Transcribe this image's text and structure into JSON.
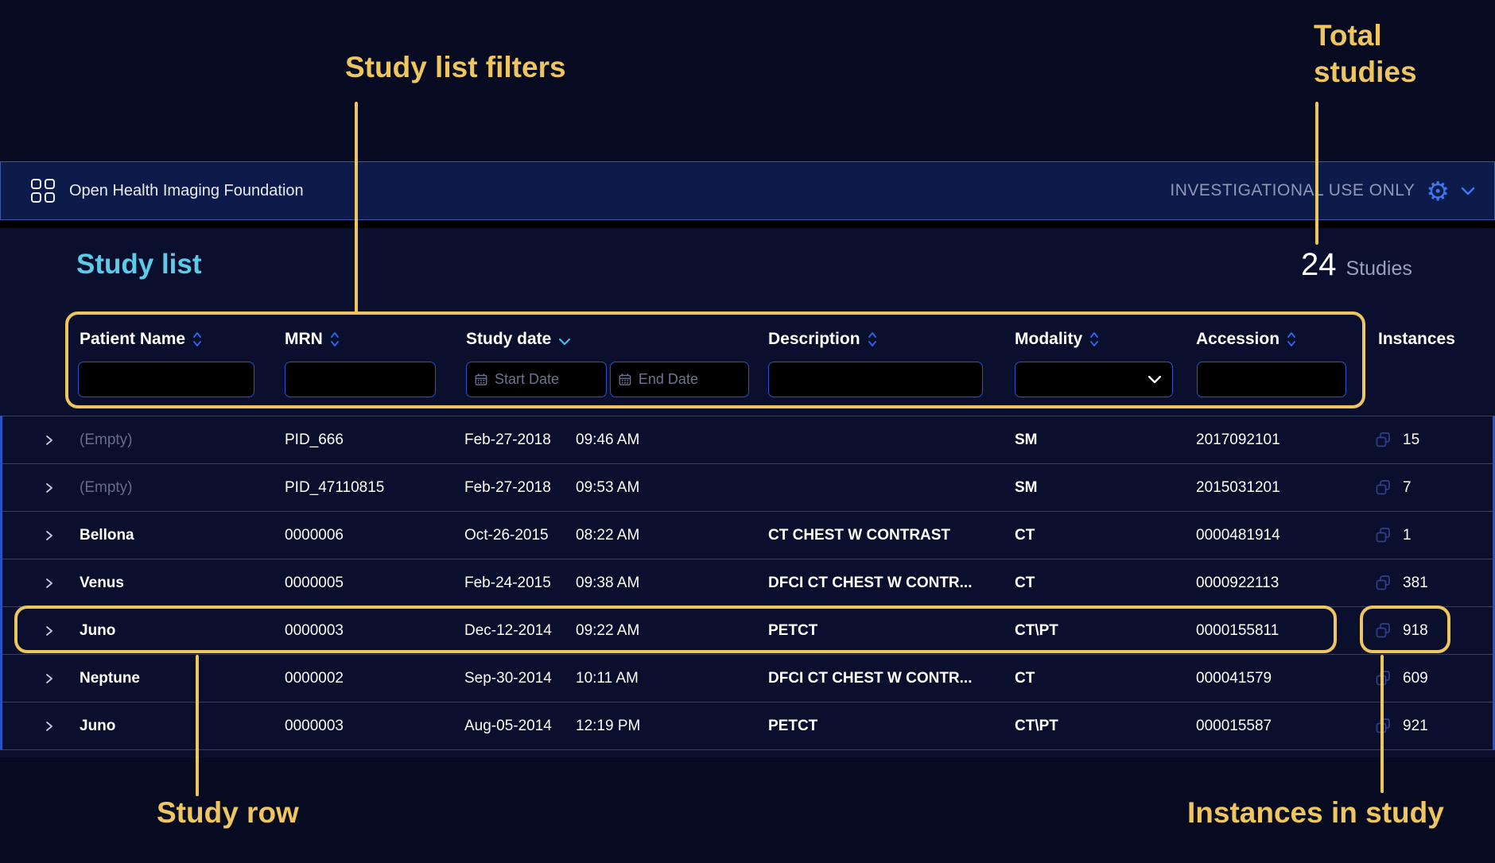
{
  "annotations": {
    "filters_label": "Study list filters",
    "total_line1": "Total",
    "total_line2": "studies",
    "study_row_label": "Study row",
    "instances_label": "Instances in study"
  },
  "header": {
    "app_name": "Open Health Imaging Foundation",
    "right_text": "INVESTIGATIONAL USE ONLY",
    "gear_glyph": "⚙"
  },
  "studylist": {
    "title": "Study list",
    "count": "24",
    "count_label": "Studies"
  },
  "filters": {
    "columns": [
      {
        "label": "Patient Name",
        "sort": "both"
      },
      {
        "label": "MRN",
        "sort": "both"
      },
      {
        "label": "Study date",
        "sort": "down"
      },
      {
        "label": "Description",
        "sort": "both"
      },
      {
        "label": "Modality",
        "sort": "both"
      },
      {
        "label": "Accession",
        "sort": "both"
      },
      {
        "label": "Instances",
        "sort": "none"
      }
    ],
    "start_date_placeholder": "Start Date",
    "end_date_placeholder": "End Date",
    "patient_value": "",
    "mrn_value": "",
    "description_value": "",
    "modality_value": "",
    "accession_value": ""
  },
  "table": {
    "rows": [
      {
        "patient": "(Empty)",
        "empty": true,
        "mrn": "PID_666",
        "date": "Feb-27-2018",
        "time": "09:46 AM",
        "description": "",
        "modality": "SM",
        "accession": "2017092101",
        "instances": "15"
      },
      {
        "patient": "(Empty)",
        "empty": true,
        "mrn": "PID_47110815",
        "date": "Feb-27-2018",
        "time": "09:53 AM",
        "description": "",
        "modality": "SM",
        "accession": "2015031201",
        "instances": "7"
      },
      {
        "patient": "Bellona",
        "empty": false,
        "mrn": "0000006",
        "date": "Oct-26-2015",
        "time": "08:22 AM",
        "description": "CT CHEST W CONTRAST",
        "modality": "CT",
        "accession": "0000481914",
        "instances": "1"
      },
      {
        "patient": "Venus",
        "empty": false,
        "mrn": "0000005",
        "date": "Feb-24-2015",
        "time": "09:38 AM",
        "description": "DFCI CT CHEST W CONTR...",
        "modality": "CT",
        "accession": "0000922113",
        "instances": "381"
      },
      {
        "patient": "Juno",
        "empty": false,
        "mrn": "0000003",
        "date": "Dec-12-2014",
        "time": "09:22 AM",
        "description": "PETCT",
        "modality": "CT\\PT",
        "accession": "0000155811",
        "instances": "918"
      },
      {
        "patient": "Neptune",
        "empty": false,
        "mrn": "0000002",
        "date": "Sep-30-2014",
        "time": "10:11 AM",
        "description": "DFCI CT CHEST W CONTR...",
        "modality": "CT",
        "accession": "000041579",
        "instances": "609"
      },
      {
        "patient": "Juno",
        "empty": false,
        "mrn": "0000003",
        "date": "Aug-05-2014",
        "time": "12:19 PM",
        "description": "PETCT",
        "modality": "CT\\PT",
        "accession": "000015587",
        "instances": "921"
      }
    ]
  },
  "colors": {
    "annotation_yellow": "#efc55f",
    "title_cyan": "#5bcbe8",
    "icon_blue": "#3f76f0",
    "sort_blue": "#2f62e8",
    "input_border_blue": "#2a52cc",
    "header_bg": "#0c1b49",
    "app_bg": "#0a0f2e"
  }
}
